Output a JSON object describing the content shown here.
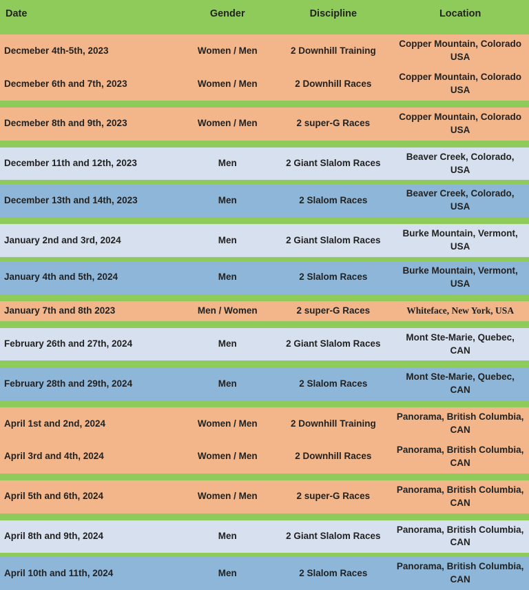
{
  "colors": {
    "green": "#8fcb5a",
    "peach": "#f2b68a",
    "lblue": "#d6e0ee",
    "mblue": "#8db6d8",
    "text": "#222222"
  },
  "columns": [
    "Date",
    "Gender",
    "Discipline",
    "Location"
  ],
  "column_widths_pct": [
    34,
    18,
    22,
    26
  ],
  "column_align": [
    "left",
    "center",
    "center",
    "center"
  ],
  "font": {
    "family": "Arial",
    "header_size_pt": 11,
    "cell_size_pt": 10,
    "weight": "bold"
  },
  "rows": [
    {
      "type": "spacer",
      "color": "green"
    },
    {
      "type": "data",
      "color": "peach",
      "date": "Decmeber 4th-5th, 2023",
      "gender": "Women / Men",
      "discipline": "2 Downhill Training",
      "location": "Copper Mountain, Colorado USA"
    },
    {
      "type": "data",
      "color": "peach",
      "date": "Decmeber 6th and 7th, 2023",
      "gender": "Women / Men",
      "discipline": "2 Downhill Races",
      "location": "Copper Mountain, Colorado USA"
    },
    {
      "type": "spacer",
      "color": "green"
    },
    {
      "type": "data",
      "color": "peach",
      "date": "Decmeber 8th and 9th, 2023",
      "gender": "Women / Men",
      "discipline": "2 super-G Races",
      "location": "Copper Mountain, Colorado USA"
    },
    {
      "type": "spacer",
      "color": "green"
    },
    {
      "type": "data",
      "color": "lblue",
      "date": "December 11th and 12th, 2023",
      "gender": "Men",
      "discipline": "2 Giant Slalom Races",
      "location": "Beaver Creek, Colorado, USA"
    },
    {
      "type": "spacer-sm",
      "color": "green"
    },
    {
      "type": "data",
      "color": "mblue",
      "date": "December 13th and 14th, 2023",
      "gender": "Men",
      "discipline": "2 Slalom Races",
      "location": "Beaver Creek, Colorado, USA"
    },
    {
      "type": "spacer",
      "color": "green"
    },
    {
      "type": "data",
      "color": "lblue",
      "date": "January 2nd and 3rd, 2024",
      "gender": "Men",
      "discipline": "2 Giant Slalom Races",
      "location": "Burke Mountain, Vermont, USA"
    },
    {
      "type": "spacer-sm",
      "color": "green"
    },
    {
      "type": "data",
      "color": "mblue",
      "date": "January 4th and 5th, 2024",
      "gender": "Men",
      "discipline": "2 Slalom Races",
      "location": "Burke Mountain, Vermont, USA"
    },
    {
      "type": "spacer",
      "color": "green"
    },
    {
      "type": "data",
      "color": "peach",
      "date": "January 7th and 8th 2023",
      "gender": "Men / Women",
      "discipline": "2 super-G Races",
      "location": "Whiteface, New York, USA",
      "location_style": "special"
    },
    {
      "type": "spacer",
      "color": "green"
    },
    {
      "type": "data",
      "color": "lblue",
      "date": "February 26th and 27th, 2024",
      "gender": "Men",
      "discipline": "2 Giant Slalom Races",
      "location": "Mont Ste-Marie, Quebec, CAN"
    },
    {
      "type": "spacer",
      "color": "green"
    },
    {
      "type": "data",
      "color": "mblue",
      "date": "February 28th and 29th, 2024",
      "gender": "Men",
      "discipline": "2 Slalom Races",
      "location": "Mont Ste-Marie, Quebec, CAN"
    },
    {
      "type": "spacer",
      "color": "green"
    },
    {
      "type": "data",
      "color": "peach",
      "date": "April 1st and 2nd, 2024",
      "gender": "Women / Men",
      "discipline": "2 Downhill Training",
      "location": "Panorama, British Columbia, CAN"
    },
    {
      "type": "data",
      "color": "peach",
      "date": "April 3rd and 4th, 2024",
      "gender": "Women / Men",
      "discipline": "2 Downhill Races",
      "location": "Panorama, British Columbia, CAN"
    },
    {
      "type": "spacer",
      "color": "green"
    },
    {
      "type": "data",
      "color": "peach",
      "date": "April 5th and 6th, 2024",
      "gender": "Women / Men",
      "discipline": "2 super-G Races",
      "location": "Panorama, British Columbia, CAN"
    },
    {
      "type": "spacer",
      "color": "green"
    },
    {
      "type": "data",
      "color": "lblue",
      "date": "April 8th and 9th, 2024",
      "gender": "Men",
      "discipline": "2 Giant Slalom Races",
      "location": "Panorama, British Columbia, CAN"
    },
    {
      "type": "spacer-sm",
      "color": "green"
    },
    {
      "type": "data",
      "color": "mblue",
      "date": "April 10th and 11th, 2024",
      "gender": "Men",
      "discipline": "2 Slalom Races",
      "location": "Panorama, British Columbia, CAN"
    }
  ]
}
